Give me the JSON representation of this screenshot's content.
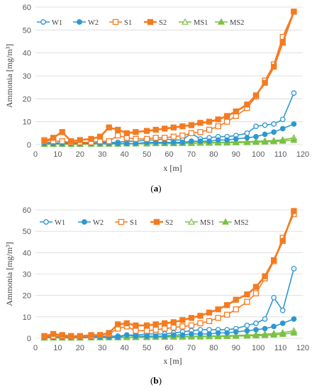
{
  "chart_data": [
    {
      "type": "line",
      "caption": "(a)",
      "xlabel": "x [m]",
      "ylabel": "Ammonia [mg/m³]",
      "xlim": [
        0,
        120
      ],
      "ylim": [
        0,
        60
      ],
      "xticks": [
        0,
        10,
        20,
        30,
        40,
        50,
        60,
        70,
        80,
        90,
        100,
        110,
        120
      ],
      "yticks": [
        0,
        10,
        20,
        30,
        40,
        50,
        60
      ],
      "grid": "horizontal",
      "legend_position": "top-left",
      "x": [
        4,
        8,
        12,
        16,
        20,
        25,
        29,
        33,
        37,
        41,
        45,
        50,
        54,
        58,
        62,
        66,
        70,
        74,
        78,
        82,
        86,
        90,
        95,
        99,
        103,
        107,
        111,
        116
      ],
      "series": [
        {
          "name": "W1",
          "color": "#2e97d1",
          "marker": "open-circle",
          "values": [
            1.5,
            0.5,
            1,
            0.5,
            0.5,
            1,
            1,
            1,
            1,
            1.5,
            1.5,
            2,
            2,
            2.5,
            2,
            2,
            5,
            2.5,
            3,
            3.5,
            3.5,
            4,
            5,
            8,
            8.5,
            9,
            11,
            22.5
          ]
        },
        {
          "name": "W2",
          "color": "#2e97d1",
          "marker": "filled-circle",
          "values": [
            0.5,
            0.5,
            0.5,
            0.5,
            0.5,
            0.5,
            0.5,
            0.5,
            0.5,
            0.5,
            0.5,
            1,
            1,
            1,
            1,
            1,
            1.5,
            1.5,
            1.5,
            2,
            2,
            2.5,
            3,
            3.5,
            4.5,
            5.5,
            7,
            9
          ]
        },
        {
          "name": "S1",
          "color": "#f47b20",
          "marker": "open-square",
          "values": [
            2,
            1.5,
            1.5,
            1,
            1,
            1,
            1.5,
            1.5,
            4,
            3,
            2.5,
            2.5,
            3,
            3,
            3.5,
            4,
            5,
            5.5,
            6.5,
            8,
            10,
            12.5,
            16,
            21,
            28,
            35,
            47,
            58
          ]
        },
        {
          "name": "S2",
          "color": "#f47b20",
          "marker": "filled-square",
          "values": [
            1.5,
            3,
            5.5,
            1.5,
            2,
            2.5,
            3.5,
            7.5,
            6.5,
            5,
            5.5,
            6,
            6.5,
            7,
            7.5,
            8,
            8.5,
            9.5,
            10,
            11,
            12.5,
            14.5,
            17.5,
            21.5,
            27,
            34,
            44.5,
            58
          ]
        },
        {
          "name": "MS1",
          "color": "#7ac143",
          "marker": "open-triangle",
          "values": [
            0.3,
            0.3,
            0.3,
            0.3,
            0.3,
            0.4,
            0.4,
            0.5,
            0.5,
            0.5,
            0.5,
            0.6,
            0.6,
            0.7,
            0.7,
            0.8,
            0.8,
            0.9,
            1,
            1,
            1.1,
            1.2,
            1.3,
            1.5,
            1.6,
            1.8,
            2.1,
            3
          ]
        },
        {
          "name": "MS2",
          "color": "#7ac143",
          "marker": "filled-triangle",
          "values": [
            0.2,
            0.2,
            0.2,
            0.2,
            0.2,
            0.3,
            0.3,
            0.3,
            0.3,
            0.4,
            0.4,
            0.4,
            0.5,
            0.5,
            0.5,
            0.6,
            0.6,
            0.7,
            0.7,
            0.8,
            0.8,
            0.9,
            1,
            1.1,
            1.2,
            1.4,
            1.6,
            2
          ]
        }
      ]
    },
    {
      "type": "line",
      "caption": "(b)",
      "xlabel": "x [m]",
      "ylabel": "Ammonia [mg/m³]",
      "xlim": [
        0,
        120
      ],
      "ylim": [
        0,
        60
      ],
      "xticks": [
        0,
        10,
        20,
        30,
        40,
        50,
        60,
        70,
        80,
        90,
        100,
        110,
        120
      ],
      "yticks": [
        0,
        10,
        20,
        30,
        40,
        50,
        60
      ],
      "grid": "horizontal",
      "legend_position": "top",
      "x": [
        4,
        8,
        12,
        16,
        20,
        25,
        29,
        33,
        37,
        41,
        45,
        50,
        54,
        58,
        62,
        66,
        70,
        74,
        78,
        82,
        86,
        90,
        95,
        99,
        103,
        107,
        111,
        116
      ],
      "series": [
        {
          "name": "W1",
          "color": "#2e97d1",
          "marker": "open-circle",
          "values": [
            0.5,
            0.5,
            0.5,
            0.5,
            0.5,
            0.5,
            1,
            1,
            1,
            1.5,
            1.5,
            2,
            2,
            2,
            2.5,
            3,
            3.5,
            4,
            4,
            4,
            4,
            4.5,
            6,
            7,
            9,
            19,
            13,
            32.5
          ]
        },
        {
          "name": "W2",
          "color": "#2e97d1",
          "marker": "filled-circle",
          "values": [
            0.5,
            0.5,
            0.5,
            0.5,
            0.5,
            0.5,
            0.5,
            0.5,
            0.5,
            1.5,
            1,
            1,
            1,
            1,
            1.5,
            1.5,
            2,
            2,
            2,
            2.5,
            2.5,
            3,
            3.5,
            4,
            4.5,
            5.5,
            7,
            9
          ]
        },
        {
          "name": "S1",
          "color": "#f47b20",
          "marker": "open-square",
          "values": [
            1,
            1,
            1,
            1,
            1,
            1,
            1.5,
            2,
            4.5,
            5.5,
            3.5,
            3.5,
            4,
            4.5,
            5,
            5.5,
            6,
            7,
            8,
            9.5,
            11,
            13.5,
            17,
            21,
            28,
            36,
            47,
            58
          ]
        },
        {
          "name": "S2",
          "color": "#f47b20",
          "marker": "filled-square",
          "values": [
            1,
            2,
            1.5,
            1,
            1,
            1.5,
            1.5,
            2.5,
            6.5,
            7,
            6,
            6,
            6.5,
            7,
            7.5,
            8.5,
            9.5,
            10.5,
            12,
            13.5,
            15.5,
            18,
            20.5,
            24,
            29,
            36.5,
            45.5,
            59.5
          ]
        },
        {
          "name": "MS1",
          "color": "#7ac143",
          "marker": "open-triangle",
          "values": [
            0.3,
            0.3,
            0.3,
            0.3,
            0.3,
            0.4,
            0.4,
            0.5,
            0.5,
            0.5,
            0.6,
            0.6,
            0.7,
            0.7,
            0.8,
            0.8,
            0.9,
            1,
            1,
            1.1,
            1.2,
            1.3,
            1.5,
            1.7,
            1.9,
            2.2,
            2.6,
            3.5
          ]
        },
        {
          "name": "MS2",
          "color": "#7ac143",
          "marker": "filled-triangle",
          "values": [
            0.2,
            0.2,
            0.2,
            0.2,
            0.2,
            0.3,
            0.3,
            0.3,
            0.3,
            0.4,
            0.4,
            0.4,
            0.5,
            0.5,
            0.6,
            0.6,
            0.7,
            0.7,
            0.8,
            0.8,
            0.9,
            1,
            1.1,
            1.2,
            1.4,
            1.6,
            1.9,
            2.5
          ]
        }
      ]
    }
  ]
}
